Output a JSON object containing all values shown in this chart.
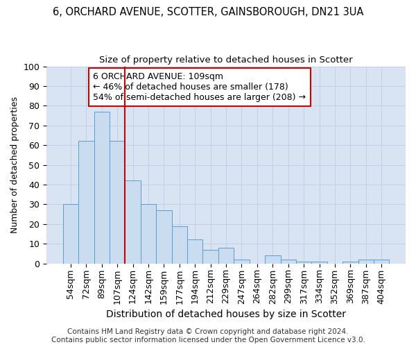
{
  "title_line1": "6, ORCHARD AVENUE, SCOTTER, GAINSBOROUGH, DN21 3UA",
  "title_line2": "Size of property relative to detached houses in Scotter",
  "xlabel": "Distribution of detached houses by size in Scotter",
  "ylabel": "Number of detached properties",
  "categories": [
    "54sqm",
    "72sqm",
    "89sqm",
    "107sqm",
    "124sqm",
    "142sqm",
    "159sqm",
    "177sqm",
    "194sqm",
    "212sqm",
    "229sqm",
    "247sqm",
    "264sqm",
    "282sqm",
    "299sqm",
    "317sqm",
    "334sqm",
    "352sqm",
    "369sqm",
    "387sqm",
    "404sqm"
  ],
  "values": [
    30,
    62,
    77,
    62,
    42,
    30,
    27,
    19,
    12,
    7,
    8,
    2,
    0,
    4,
    2,
    1,
    1,
    0,
    1,
    2,
    2
  ],
  "bar_color": "#c9dcf0",
  "bar_edge_color": "#5b9bd5",
  "vline_x": 3.5,
  "vline_color": "#cc0000",
  "annotation_text": "6 ORCHARD AVENUE: 109sqm\n← 46% of detached houses are smaller (178)\n54% of semi-detached houses are larger (208) →",
  "annotation_box_color": "#ffffff",
  "annotation_box_edge_color": "#cc0000",
  "ylim": [
    0,
    100
  ],
  "yticks": [
    0,
    10,
    20,
    30,
    40,
    50,
    60,
    70,
    80,
    90,
    100
  ],
  "grid_color": "#b8c8de",
  "background_color": "#d8e4f2",
  "footer_text": "Contains HM Land Registry data © Crown copyright and database right 2024.\nContains public sector information licensed under the Open Government Licence v3.0.",
  "title1_fontsize": 10.5,
  "title2_fontsize": 9.5,
  "xlabel_fontsize": 10,
  "ylabel_fontsize": 9,
  "tick_fontsize": 9,
  "annotation_fontsize": 9,
  "footer_fontsize": 7.5
}
